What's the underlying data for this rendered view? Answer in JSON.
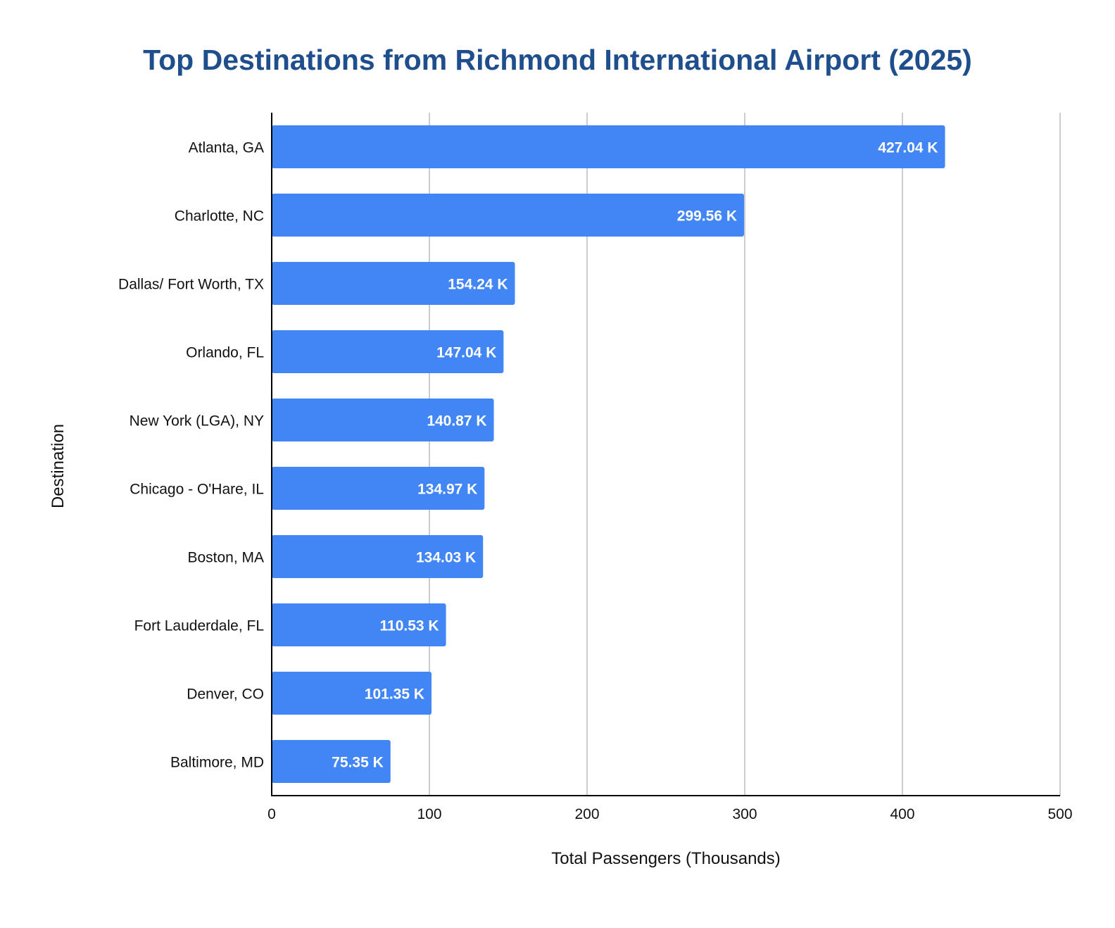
{
  "chart_data": {
    "type": "bar",
    "orientation": "horizontal",
    "title": "Top Destinations from Richmond International Airport (2025)",
    "xlabel": "Total Passengers (Thousands)",
    "ylabel": "Destination",
    "categories": [
      "Atlanta, GA",
      "Charlotte, NC",
      "Dallas/ Fort Worth, TX",
      "Orlando, FL",
      "New York (LGA), NY",
      "Chicago - O'Hare, IL",
      "Boston, MA",
      "Fort Lauderdale, FL",
      "Denver, CO",
      "Baltimore, MD"
    ],
    "values": [
      427.04,
      299.56,
      154.24,
      147.04,
      140.87,
      134.97,
      134.03,
      110.53,
      101.35,
      75.35
    ],
    "data_labels": [
      "427.04 K",
      "299.56 K",
      "154.24 K",
      "147.04 K",
      "140.87 K",
      "134.97 K",
      "134.03 K",
      "110.53 K",
      "101.35 K",
      "75.35 K"
    ],
    "xlim": [
      0,
      500
    ],
    "xticks": [
      0,
      100,
      200,
      300,
      400,
      500
    ],
    "grid": true,
    "legend": "none",
    "colors": {
      "bar": "#4285f4",
      "title": "#1f4e8c",
      "grid": "#cccccc",
      "axis": "#000000",
      "bar_label": "#ffffff"
    }
  }
}
